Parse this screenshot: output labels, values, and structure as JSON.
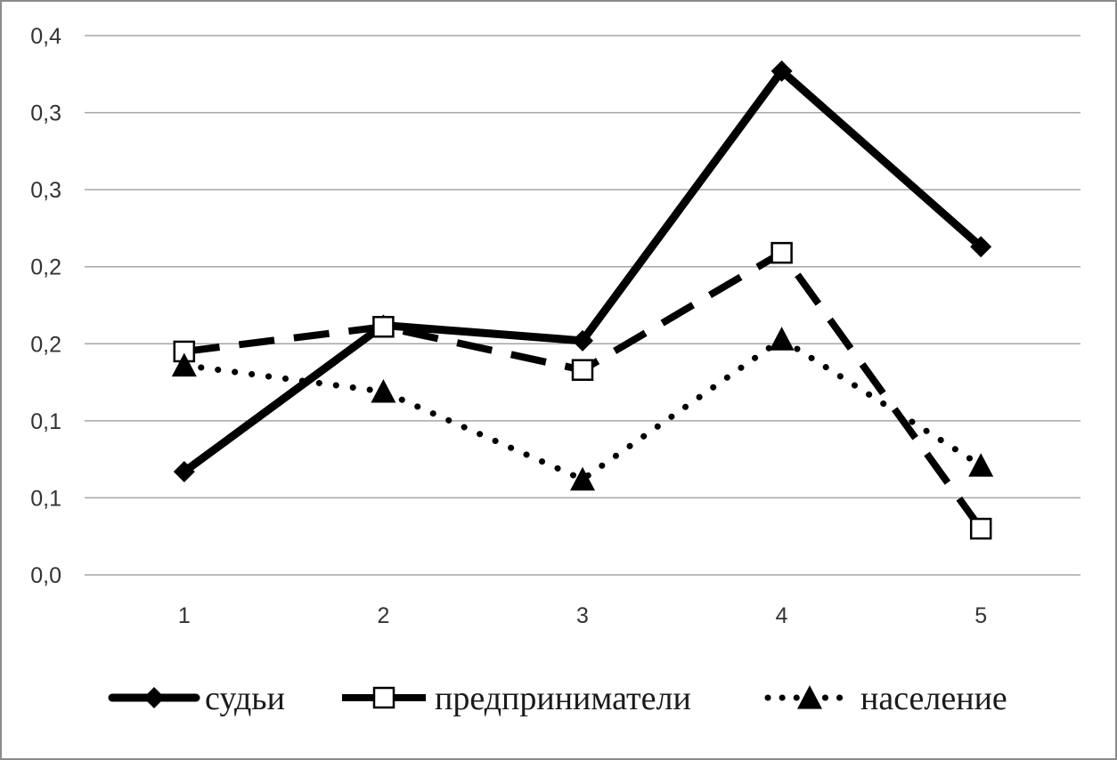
{
  "chart_data": {
    "type": "line",
    "title": "",
    "xlabel": "",
    "ylabel": "",
    "categories": [
      "1",
      "2",
      "3",
      "4",
      "5"
    ],
    "y_ticks": [
      "0,0",
      "0,1",
      "0,1",
      "0,2",
      "0,2",
      "0,3",
      "0,3",
      "0,4"
    ],
    "ylim": [
      0,
      0.35
    ],
    "grid": "horizontal",
    "legend_position": "bottom",
    "series": [
      {
        "name": "судьи",
        "values": [
          0.067,
          0.162,
          0.152,
          0.327,
          0.213
        ],
        "line_style": "solid",
        "marker": "diamond",
        "color": "#000000"
      },
      {
        "name": "предприниматели",
        "values": [
          0.145,
          0.161,
          0.133,
          0.209,
          0.03
        ],
        "line_style": "dashed",
        "marker": "square-open",
        "color": "#000000"
      },
      {
        "name": "население",
        "values": [
          0.136,
          0.119,
          0.062,
          0.153,
          0.071
        ],
        "line_style": "dotted",
        "marker": "triangle",
        "color": "#000000"
      }
    ]
  }
}
